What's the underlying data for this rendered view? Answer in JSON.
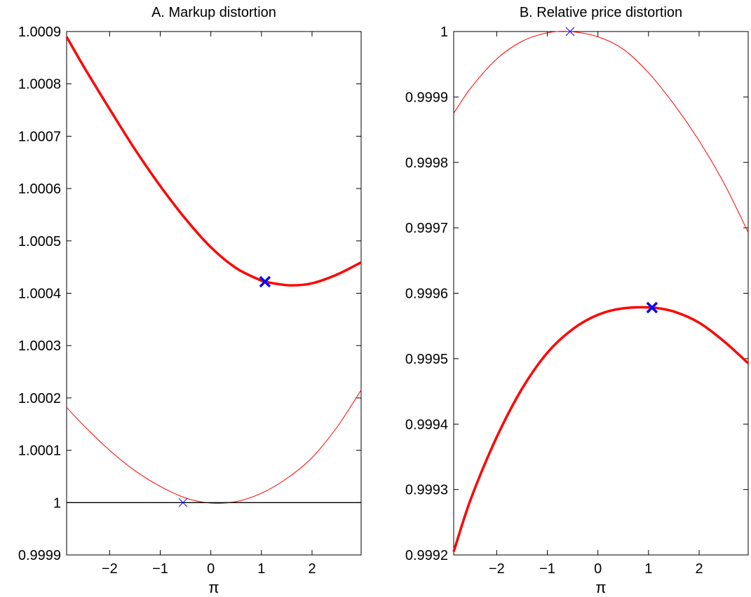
{
  "chart_data": [
    {
      "type": "line",
      "title": "A. Markup distortion",
      "xlabel": "π",
      "ylabel": "",
      "xlim": [
        -2.85,
        2.97
      ],
      "ylim": [
        0.9999,
        1.0009
      ],
      "xticks": [
        -2,
        -1,
        0,
        1,
        2
      ],
      "xtick_labels": [
        "−2",
        "−1",
        "0",
        "1",
        "2"
      ],
      "yticks": [
        0.9999,
        1.0,
        1.0001,
        1.0002,
        1.0003,
        1.0004,
        1.0005,
        1.0006,
        1.0007,
        1.0008,
        1.0009
      ],
      "ytick_labels": [
        "0.9999",
        "1",
        "1.0001",
        "1.0002",
        "1.0003",
        "1.0004",
        "1.0005",
        "1.0006",
        "1.0007",
        "1.0008",
        "1.0009"
      ],
      "grid": false,
      "series": [
        {
          "style": "thick",
          "color": "#ff0000",
          "x": [
            -2.85,
            -2.5,
            -2.0,
            -1.5,
            -1.0,
            -0.5,
            0.0,
            0.5,
            1.0,
            1.07,
            1.3,
            1.6,
            2.0,
            2.5,
            2.97
          ],
          "y": [
            1.00089,
            1.000831,
            1.000752,
            1.000675,
            1.000605,
            1.000542,
            1.000488,
            1.000448,
            1.000424,
            1.000422,
            1.000418,
            1.000415,
            1.000419,
            1.000436,
            1.000459
          ]
        },
        {
          "style": "thin",
          "color": "#ff0000",
          "x": [
            -2.85,
            -2.5,
            -2.0,
            -1.5,
            -1.0,
            -0.5,
            0.0,
            0.5,
            1.0,
            1.5,
            2.0,
            2.5,
            2.97
          ],
          "y": [
            1.000182,
            1.000146,
            1.0001,
            1.000061,
            1.000031,
            1.000009,
            0.999999,
            1.000002,
            1.000018,
            1.000046,
            1.000086,
            1.000145,
            1.000215
          ]
        },
        {
          "style": "reference",
          "color": "#000000",
          "x": [
            -2.85,
            2.97
          ],
          "y": [
            1.0,
            1.0
          ]
        }
      ],
      "markers": [
        {
          "x": 1.07,
          "y": 1.000422,
          "symbol": "x",
          "size": "large",
          "color": "#0000ff"
        },
        {
          "x": -0.55,
          "y": 1.0,
          "symbol": "x",
          "size": "small",
          "color": "#0000ff"
        }
      ]
    },
    {
      "type": "line",
      "title": "B. Relative price distortion",
      "xlabel": "π",
      "ylabel": "",
      "xlim": [
        -2.85,
        2.97
      ],
      "ylim": [
        0.9992,
        1.0
      ],
      "xticks": [
        -2,
        -1,
        0,
        1,
        2
      ],
      "xtick_labels": [
        "−2",
        "−1",
        "0",
        "1",
        "2"
      ],
      "yticks": [
        0.9992,
        0.9993,
        0.9994,
        0.9995,
        0.9996,
        0.9997,
        0.9998,
        0.9999,
        1.0
      ],
      "ytick_labels": [
        "0.9992",
        "0.9993",
        "0.9994",
        "0.9995",
        "0.9996",
        "0.9997",
        "0.9998",
        "0.9999",
        "1"
      ],
      "grid": false,
      "series": [
        {
          "style": "thin",
          "color": "#ff0000",
          "x": [
            -2.85,
            -2.5,
            -2.0,
            -1.5,
            -1.0,
            -0.55,
            0.0,
            0.5,
            1.0,
            1.5,
            2.0,
            2.5,
            2.97
          ],
          "y": [
            0.999875,
            0.999915,
            0.999958,
            0.999985,
            0.999998,
            1.0,
            0.999992,
            0.999973,
            0.999937,
            0.999889,
            0.999833,
            0.999767,
            0.999693
          ]
        },
        {
          "style": "thick",
          "color": "#ff0000",
          "x": [
            -2.85,
            -2.5,
            -2.0,
            -1.5,
            -1.0,
            -0.5,
            0.0,
            0.5,
            1.07,
            1.5,
            2.0,
            2.5,
            2.97
          ],
          "y": [
            0.999205,
            0.999288,
            0.99938,
            0.999454,
            0.999509,
            0.999545,
            0.999567,
            0.999577,
            0.999578,
            0.999572,
            0.999555,
            0.999526,
            0.999493
          ]
        }
      ],
      "markers": [
        {
          "x": -0.55,
          "y": 1.0,
          "symbol": "x",
          "size": "small",
          "color": "#0000ff"
        },
        {
          "x": 1.07,
          "y": 0.999578,
          "symbol": "x",
          "size": "large",
          "color": "#0000ff"
        }
      ]
    }
  ]
}
